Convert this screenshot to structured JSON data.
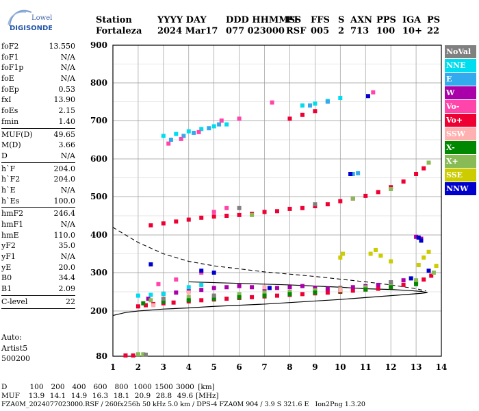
{
  "logo": {
    "line1": "Lowell",
    "line2": "DIGISONDE"
  },
  "header": {
    "row1": [
      "Station",
      "YYYY DAY",
      "DDD HHMMSS",
      "P1",
      "FFS",
      "S",
      "AXN",
      "PPS",
      "IGA",
      "PS"
    ],
    "row2": [
      "Fortaleza",
      "2024 Mar17",
      "077 023000",
      "RSF",
      "005",
      "2",
      "713",
      "100",
      "10+",
      "22"
    ]
  },
  "params": {
    "g1": [
      [
        "foF2",
        "13.550"
      ],
      [
        "foF1",
        "N/A"
      ],
      [
        "foF1p",
        "N/A"
      ],
      [
        "foE",
        "N/A"
      ],
      [
        "foEp",
        "0.53"
      ],
      [
        "fxI",
        "13.90"
      ],
      [
        "foEs",
        "2.15"
      ],
      [
        "fmin",
        "1.40"
      ]
    ],
    "g2": [
      [
        "MUF(D)",
        "49.65"
      ],
      [
        "M(D)",
        "3.66"
      ],
      [
        "D",
        "N/A"
      ]
    ],
    "g3": [
      [
        "h`F",
        "204.0"
      ],
      [
        "h`F2",
        "204.0"
      ],
      [
        "h`E",
        "N/A"
      ],
      [
        "h`Es",
        "100.0"
      ]
    ],
    "g4": [
      [
        "hmF2",
        "246.4"
      ],
      [
        "hmF1",
        "N/A"
      ],
      [
        "hmE",
        "110.0"
      ],
      [
        "yF2",
        "35.0"
      ],
      [
        "yF1",
        "N/A"
      ],
      [
        "yE",
        "20.0"
      ],
      [
        "B0",
        "34.4"
      ],
      [
        "B1",
        "2.09"
      ]
    ],
    "g5": [
      [
        "C-level",
        "22"
      ]
    ],
    "auto": [
      "Auto:",
      "Artist5",
      "500200"
    ]
  },
  "legend": [
    {
      "label": "NoVal",
      "color": "#808080",
      "text": "#ffffff"
    },
    {
      "label": "NNE",
      "color": "#00ddee",
      "text": "#ffffff"
    },
    {
      "label": "E",
      "color": "#33aaee",
      "text": "#ffffff"
    },
    {
      "label": "W",
      "color": "#aa00aa",
      "text": "#ffffff"
    },
    {
      "label": "Vo-",
      "color": "#ff44aa",
      "text": "#ffffff"
    },
    {
      "label": "Vo+",
      "color": "#ee0033",
      "text": "#ffffff"
    },
    {
      "label": "SSW",
      "color": "#ffb0b0",
      "text": "#ffffff"
    },
    {
      "label": "X-",
      "color": "#008800",
      "text": "#ffffff"
    },
    {
      "label": "X+",
      "color": "#88bb55",
      "text": "#ffffff"
    },
    {
      "label": "SSE",
      "color": "#cccc00",
      "text": "#ffffff"
    },
    {
      "label": "NNW",
      "color": "#0000cc",
      "text": "#ffffff"
    }
  ],
  "bottom": {
    "d_label": "D",
    "d_values": [
      "100",
      "200",
      "400",
      "600",
      "800",
      "1000",
      "1500",
      "3000",
      "[km]"
    ],
    "muf_label": "MUF",
    "muf_values": [
      "13.9",
      "14.1",
      "14.9",
      "16.3",
      "18.1",
      "20.9",
      "28.8",
      "49.6",
      "[MHz]"
    ]
  },
  "footer": "FZA0M_2024077023000.RSF / 260fx256h 50 kHz 5.0 km / DPS-4 FZA0M 904 / 3.9 S 321.6 E   Ion2Png 1.3.20",
  "chart_data": {
    "type": "scatter",
    "xlim": [
      1,
      14
    ],
    "ylim": [
      80,
      900
    ],
    "ylim_display": [
      80,
      900
    ],
    "x_ticks": [
      1,
      2,
      3,
      4,
      5,
      6,
      7,
      8,
      9,
      10,
      11,
      12,
      13,
      14
    ],
    "y_ticks": [
      80,
      200,
      300,
      400,
      500,
      600,
      700,
      800,
      900
    ],
    "grid": true,
    "series": [
      {
        "name": "Vo+",
        "color": "#ee0033",
        "points": [
          [
            1.5,
            82
          ],
          [
            1.8,
            82
          ],
          [
            2,
            212
          ],
          [
            2.3,
            215
          ],
          [
            2.6,
            218
          ],
          [
            3,
            220
          ],
          [
            3.4,
            222
          ],
          [
            4,
            225
          ],
          [
            4.5,
            228
          ],
          [
            5,
            230
          ],
          [
            5.5,
            232
          ],
          [
            6,
            234
          ],
          [
            6.5,
            236
          ],
          [
            7,
            238
          ],
          [
            7.5,
            240
          ],
          [
            8,
            242
          ],
          [
            8.5,
            244
          ],
          [
            9,
            246
          ],
          [
            9.5,
            248
          ],
          [
            10,
            250
          ],
          [
            10.5,
            253
          ],
          [
            11,
            256
          ],
          [
            11.5,
            258
          ],
          [
            12,
            262
          ],
          [
            12.5,
            268
          ],
          [
            13,
            275
          ],
          [
            13.3,
            282
          ],
          [
            13.6,
            292
          ],
          [
            2.5,
            425
          ],
          [
            3,
            430
          ],
          [
            3.5,
            435
          ],
          [
            4,
            440
          ],
          [
            4.5,
            445
          ],
          [
            5,
            448
          ],
          [
            5.5,
            450
          ],
          [
            6,
            452
          ],
          [
            6.5,
            455
          ],
          [
            7,
            460
          ],
          [
            7.5,
            462
          ],
          [
            8,
            468
          ],
          [
            8.5,
            470
          ],
          [
            9,
            475
          ],
          [
            9.5,
            480
          ],
          [
            10,
            488
          ],
          [
            10.5,
            495
          ],
          [
            11,
            502
          ],
          [
            11.5,
            512
          ],
          [
            12,
            525
          ],
          [
            12.5,
            540
          ],
          [
            13,
            560
          ],
          [
            13.3,
            575
          ],
          [
            8,
            705
          ],
          [
            8.5,
            715
          ],
          [
            9,
            725
          ]
        ]
      },
      {
        "name": "W",
        "color": "#aa00aa",
        "points": [
          [
            2.4,
            232
          ],
          [
            3,
            245
          ],
          [
            3.5,
            248
          ],
          [
            4,
            252
          ],
          [
            4.5,
            255
          ],
          [
            5,
            260
          ],
          [
            5.5,
            262
          ],
          [
            6,
            265
          ],
          [
            6.5,
            262
          ],
          [
            7,
            258
          ],
          [
            7.5,
            260
          ],
          [
            8,
            262
          ],
          [
            8.5,
            265
          ],
          [
            9,
            260
          ],
          [
            9.5,
            258
          ],
          [
            10,
            260
          ],
          [
            10.5,
            262
          ],
          [
            11,
            265
          ],
          [
            11.5,
            268
          ],
          [
            12,
            272
          ],
          [
            12.5,
            280
          ],
          [
            13,
            395
          ],
          [
            13.2,
            390
          ]
        ]
      },
      {
        "name": "X+",
        "color": "#88bb55",
        "points": [
          [
            2,
            85
          ],
          [
            2.2,
            85
          ],
          [
            2.5,
            228
          ],
          [
            3,
            232
          ],
          [
            4,
            236
          ],
          [
            5,
            240
          ],
          [
            6,
            244
          ],
          [
            7,
            248
          ],
          [
            8,
            250
          ],
          [
            9,
            254
          ],
          [
            10,
            258
          ],
          [
            11,
            262
          ],
          [
            12,
            268
          ],
          [
            13,
            280
          ],
          [
            13.7,
            300
          ],
          [
            6.5,
            452
          ],
          [
            10.5,
            495
          ],
          [
            12,
            520
          ],
          [
            13.5,
            590
          ]
        ]
      },
      {
        "name": "X-",
        "color": "#008800",
        "points": [
          [
            2.2,
            220
          ],
          [
            3,
            224
          ],
          [
            4,
            228
          ],
          [
            5,
            232
          ],
          [
            6,
            236
          ],
          [
            7,
            240
          ],
          [
            8,
            244
          ],
          [
            9,
            248
          ],
          [
            10,
            252
          ],
          [
            11,
            256
          ],
          [
            12,
            262
          ],
          [
            13,
            270
          ]
        ]
      },
      {
        "name": "NNE",
        "color": "#00ddee",
        "points": [
          [
            2,
            240
          ],
          [
            2.5,
            242
          ],
          [
            3,
            245
          ],
          [
            4,
            262
          ],
          [
            4.5,
            268
          ],
          [
            3,
            660
          ],
          [
            3.5,
            665
          ],
          [
            4,
            672
          ],
          [
            4.5,
            678
          ],
          [
            5,
            685
          ],
          [
            5.5,
            690
          ],
          [
            8.5,
            740
          ],
          [
            9,
            745
          ],
          [
            9.5,
            752
          ],
          [
            10,
            760
          ]
        ]
      },
      {
        "name": "E",
        "color": "#33aaee",
        "points": [
          [
            3.3,
            650
          ],
          [
            3.8,
            660
          ],
          [
            4.2,
            668
          ],
          [
            4.8,
            680
          ],
          [
            5.2,
            690
          ],
          [
            8.8,
            740
          ],
          [
            9.5,
            750
          ],
          [
            10.5,
            560
          ],
          [
            10.7,
            562
          ]
        ]
      },
      {
        "name": "Vo-",
        "color": "#ff44aa",
        "points": [
          [
            2.8,
            270
          ],
          [
            3.5,
            282
          ],
          [
            4.5,
            300
          ],
          [
            5,
            460
          ],
          [
            5.5,
            470
          ],
          [
            3.2,
            640
          ],
          [
            3.7,
            652
          ],
          [
            4.4,
            670
          ],
          [
            5.3,
            700
          ],
          [
            6,
            705
          ],
          [
            7.3,
            748
          ],
          [
            11.3,
            775
          ]
        ]
      },
      {
        "name": "SSE",
        "color": "#cccc00",
        "points": [
          [
            10,
            340
          ],
          [
            10.1,
            350
          ],
          [
            11.2,
            350
          ],
          [
            11.4,
            360
          ],
          [
            11.6,
            345
          ],
          [
            12,
            330
          ],
          [
            13.1,
            320
          ],
          [
            13.3,
            340
          ],
          [
            13.5,
            355
          ],
          [
            13.8,
            318
          ]
        ]
      },
      {
        "name": "NNW",
        "color": "#0000cc",
        "points": [
          [
            2.5,
            322
          ],
          [
            4.5,
            305
          ],
          [
            5,
            300
          ],
          [
            7.2,
            260
          ],
          [
            10.4,
            560
          ],
          [
            11.1,
            765
          ],
          [
            13.1,
            393
          ],
          [
            13.2,
            385
          ],
          [
            12.8,
            285
          ],
          [
            13.5,
            305
          ]
        ]
      },
      {
        "name": "NoVal",
        "color": "#808080",
        "points": [
          [
            2.3,
            84
          ],
          [
            3,
            232
          ],
          [
            5,
            240
          ],
          [
            6,
            470
          ],
          [
            9,
            480
          ],
          [
            12,
            275
          ]
        ]
      },
      {
        "name": "SSW",
        "color": "#ffb0b0",
        "points": [
          [
            2.6,
            215
          ],
          [
            4,
            248
          ],
          [
            7,
            262
          ],
          [
            10,
            255
          ]
        ]
      }
    ],
    "curves": {
      "profile_solid": [
        [
          1,
          188
        ],
        [
          1.5,
          196
        ],
        [
          2,
          200
        ],
        [
          3,
          205
        ],
        [
          4,
          208
        ],
        [
          5,
          212
        ],
        [
          6,
          215
        ],
        [
          7,
          218
        ],
        [
          8,
          222
        ],
        [
          9,
          226
        ],
        [
          10,
          230
        ],
        [
          11,
          235
        ],
        [
          12,
          240
        ],
        [
          12.8,
          244
        ],
        [
          13.2,
          246
        ],
        [
          13.45,
          248
        ],
        [
          13.2,
          251
        ],
        [
          12.8,
          253
        ],
        [
          12,
          256
        ],
        [
          11,
          258
        ],
        [
          10,
          262
        ],
        [
          9,
          265
        ],
        [
          8,
          268
        ],
        [
          7,
          270
        ],
        [
          6,
          272
        ],
        [
          5,
          274
        ],
        [
          4,
          276
        ]
      ],
      "profile_dashed": [
        [
          1,
          420
        ],
        [
          1.5,
          400
        ],
        [
          2,
          380
        ],
        [
          2.5,
          365
        ],
        [
          3,
          350
        ],
        [
          3.5,
          340
        ],
        [
          4,
          330
        ],
        [
          5,
          318
        ],
        [
          6,
          310
        ],
        [
          7,
          302
        ],
        [
          8,
          296
        ],
        [
          9,
          290
        ],
        [
          10,
          283
        ],
        [
          11,
          276
        ],
        [
          12,
          268
        ],
        [
          13,
          258
        ],
        [
          13.4,
          252
        ]
      ]
    }
  }
}
